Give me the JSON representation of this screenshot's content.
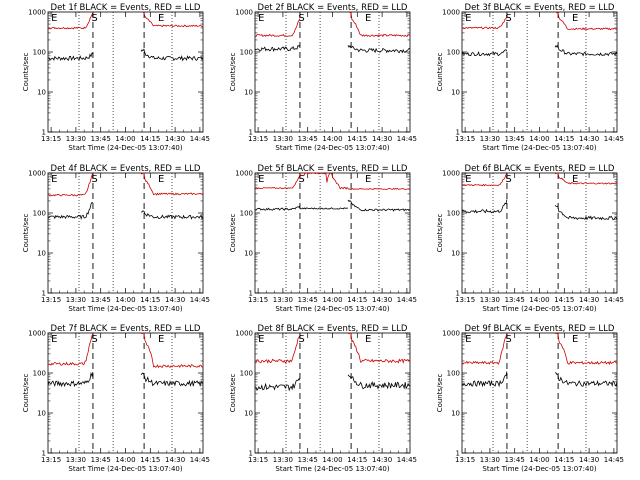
{
  "figure": {
    "xlabel": "Start Time (24-Dec-05 13:07:40)",
    "ylabel": "Counts/sec",
    "colors": {
      "events": "#000000",
      "lld": "#cc0000"
    }
  },
  "chart_data": [
    {
      "type": "line",
      "title": "Det 1f BLACK = Events, RED = LLD",
      "ylog": true,
      "ylim": [
        1,
        1000
      ],
      "xlim": [
        0,
        100
      ],
      "xticks": [
        "13:15",
        "13:30",
        "13:45",
        "14:00",
        "14:15",
        "14:30",
        "14:45"
      ],
      "yticks": [
        "1",
        "10",
        "100",
        "1000"
      ],
      "markers": [
        {
          "label": "E",
          "x": 2
        },
        {
          "label": "S",
          "x": 28
        },
        {
          "label": "E",
          "x": 71
        }
      ],
      "dotted_x": [
        20,
        42,
        80
      ],
      "dashed_x": [
        29,
        62
      ],
      "series": [
        {
          "name": "Events",
          "color": "#000000",
          "segments": [
            {
              "from": 0,
              "to": 29,
              "base": 70,
              "rise_end": 90,
              "noise": 0.12
            },
            {
              "from": 60,
              "to": 100,
              "base": 70,
              "spike": 110,
              "noise": 0.12
            }
          ]
        },
        {
          "name": "LLD",
          "color": "#cc0000",
          "segments": [
            {
              "from": 0,
              "to": 29,
              "base": 400,
              "rise_end": 1000,
              "noise": 0.05
            },
            {
              "from": 60,
              "to": 100,
              "base": 450,
              "spike": 1000,
              "noise": 0.05
            }
          ]
        }
      ]
    },
    {
      "type": "line",
      "title": "Det 2f BLACK = Events, RED = LLD",
      "ylog": true,
      "ylim": [
        1,
        1000
      ],
      "xlim": [
        0,
        100
      ],
      "xticks": [
        "13:15",
        "13:30",
        "13:45",
        "14:00",
        "14:15",
        "14:30",
        "14:45"
      ],
      "yticks": [
        "1",
        "10",
        "100",
        "1000"
      ],
      "markers": [
        {
          "label": "E",
          "x": 2
        },
        {
          "label": "S",
          "x": 28
        },
        {
          "label": "E",
          "x": 71
        }
      ],
      "dotted_x": [
        20,
        42,
        80
      ],
      "dashed_x": [
        29,
        62
      ],
      "series": [
        {
          "name": "Events",
          "color": "#000000",
          "segments": [
            {
              "from": 0,
              "to": 29,
              "base": 120,
              "rise_end": 140,
              "noise": 0.12
            },
            {
              "from": 60,
              "to": 100,
              "base": 110,
              "spike": 140,
              "noise": 0.12
            }
          ]
        },
        {
          "name": "LLD",
          "color": "#cc0000",
          "segments": [
            {
              "from": 0,
              "to": 29,
              "base": 260,
              "rise_end": 700,
              "noise": 0.06
            },
            {
              "from": 60,
              "to": 100,
              "base": 260,
              "spike": 1000,
              "noise": 0.06
            }
          ]
        }
      ]
    },
    {
      "type": "line",
      "title": "Det 3f BLACK = Events, RED = LLD",
      "ylog": true,
      "ylim": [
        1,
        1000
      ],
      "xlim": [
        0,
        100
      ],
      "xticks": [
        "13:15",
        "13:30",
        "13:45",
        "14:00",
        "14:15",
        "14:30",
        "14:45"
      ],
      "yticks": [
        "1",
        "10",
        "100",
        "1000"
      ],
      "markers": [
        {
          "label": "E",
          "x": 2
        },
        {
          "label": "S",
          "x": 28
        },
        {
          "label": "E",
          "x": 71
        }
      ],
      "dotted_x": [
        20,
        42,
        80
      ],
      "dashed_x": [
        29,
        62
      ],
      "series": [
        {
          "name": "Events",
          "color": "#000000",
          "segments": [
            {
              "from": 0,
              "to": 29,
              "base": 90,
              "rise_end": 110,
              "noise": 0.1
            },
            {
              "from": 60,
              "to": 100,
              "base": 90,
              "spike": 140,
              "noise": 0.1
            }
          ]
        },
        {
          "name": "LLD",
          "color": "#cc0000",
          "segments": [
            {
              "from": 0,
              "to": 29,
              "base": 400,
              "rise_end": 800,
              "noise": 0.05
            },
            {
              "from": 60,
              "to": 100,
              "base": 380,
              "spike": 1000,
              "noise": 0.05
            }
          ]
        }
      ]
    },
    {
      "type": "line",
      "title": "Det 4f BLACK = Events, RED = LLD",
      "ylog": true,
      "ylim": [
        1,
        1000
      ],
      "xlim": [
        0,
        100
      ],
      "xticks": [
        "13:15",
        "13:30",
        "13:45",
        "14:00",
        "14:15",
        "14:30",
        "14:45"
      ],
      "yticks": [
        "1",
        "10",
        "100",
        "1000"
      ],
      "markers": [
        {
          "label": "E",
          "x": 2
        },
        {
          "label": "S",
          "x": 28
        },
        {
          "label": "E",
          "x": 71
        }
      ],
      "dotted_x": [
        20,
        42,
        80
      ],
      "dashed_x": [
        29,
        62
      ],
      "series": [
        {
          "name": "Events",
          "color": "#000000",
          "segments": [
            {
              "from": 0,
              "to": 29,
              "base": 80,
              "rise_end": 200,
              "noise": 0.1
            },
            {
              "from": 60,
              "to": 100,
              "base": 80,
              "spike": 110,
              "noise": 0.1
            }
          ]
        },
        {
          "name": "LLD",
          "color": "#cc0000",
          "segments": [
            {
              "from": 0,
              "to": 29,
              "base": 280,
              "rise_end": 1000,
              "noise": 0.05
            },
            {
              "from": 60,
              "to": 100,
              "base": 300,
              "spike": 1000,
              "noise": 0.05
            }
          ]
        }
      ]
    },
    {
      "type": "line",
      "title": "Det 5f BLACK = Events, RED = LLD",
      "ylog": true,
      "ylim": [
        1,
        1000
      ],
      "xlim": [
        0,
        100
      ],
      "xticks": [
        "13:15",
        "13:30",
        "13:45",
        "14:00",
        "14:15",
        "14:30",
        "14:45"
      ],
      "yticks": [
        "1",
        "10",
        "100",
        "1000"
      ],
      "markers": [
        {
          "label": "E",
          "x": 2
        },
        {
          "label": "S",
          "x": 28
        },
        {
          "label": "E",
          "x": 71
        }
      ],
      "dotted_x": [
        20,
        42,
        80
      ],
      "dashed_x": [
        29,
        62
      ],
      "series": [
        {
          "name": "Events",
          "color": "#000000",
          "segments": [
            {
              "from": 0,
              "to": 29,
              "base": 125,
              "rise_end": 150,
              "noise": 0.06
            },
            {
              "from": 29,
              "to": 60,
              "base": 130,
              "noise": 0.04
            },
            {
              "from": 60,
              "to": 100,
              "base": 120,
              "spike": 200,
              "noise": 0.06
            }
          ]
        },
        {
          "name": "LLD",
          "color": "#cc0000",
          "segments": [
            {
              "from": 0,
              "to": 29,
              "base": 420,
              "rise_end": 900,
              "noise": 0.03
            },
            {
              "from": 29,
              "to": 60,
              "hump": true,
              "noise": 0.05
            },
            {
              "from": 60,
              "to": 100,
              "base": 400,
              "noise": 0.03
            }
          ]
        }
      ]
    },
    {
      "type": "line",
      "title": "Det 6f BLACK = Events, RED = LLD",
      "ylog": true,
      "ylim": [
        1,
        1000
      ],
      "xlim": [
        0,
        100
      ],
      "xticks": [
        "13:15",
        "13:30",
        "13:45",
        "14:00",
        "14:15",
        "14:30",
        "14:45"
      ],
      "yticks": [
        "1",
        "10",
        "100",
        "1000"
      ],
      "markers": [
        {
          "label": "E",
          "x": 2
        },
        {
          "label": "S",
          "x": 28
        },
        {
          "label": "E",
          "x": 71
        }
      ],
      "dotted_x": [
        20,
        42,
        80
      ],
      "dashed_x": [
        29,
        62
      ],
      "series": [
        {
          "name": "Events",
          "color": "#000000",
          "segments": [
            {
              "from": 0,
              "to": 29,
              "base": 110,
              "rise_end": 200,
              "noise": 0.1
            },
            {
              "from": 60,
              "to": 100,
              "base": 75,
              "spike": 150,
              "noise": 0.1
            }
          ]
        },
        {
          "name": "LLD",
          "color": "#cc0000",
          "segments": [
            {
              "from": 0,
              "to": 29,
              "base": 500,
              "rise_end": 1000,
              "noise": 0.04
            },
            {
              "from": 60,
              "to": 100,
              "base": 550,
              "spike": 1000,
              "noise": 0.04
            }
          ]
        }
      ]
    },
    {
      "type": "line",
      "title": "Det 7f BLACK = Events, RED = LLD",
      "ylog": true,
      "ylim": [
        1,
        1000
      ],
      "xlim": [
        0,
        100
      ],
      "xticks": [
        "13:15",
        "13:30",
        "13:45",
        "14:00",
        "14:15",
        "14:30",
        "14:45"
      ],
      "yticks": [
        "1",
        "10",
        "100",
        "1000"
      ],
      "markers": [
        {
          "label": "E",
          "x": 2
        },
        {
          "label": "S",
          "x": 28
        },
        {
          "label": "E",
          "x": 71
        }
      ],
      "dotted_x": [
        20,
        42,
        80
      ],
      "dashed_x": [
        29,
        62
      ],
      "series": [
        {
          "name": "Events",
          "color": "#000000",
          "segments": [
            {
              "from": 0,
              "to": 29,
              "base": 55,
              "rise_end": 110,
              "noise": 0.15
            },
            {
              "from": 60,
              "to": 100,
              "base": 55,
              "spike": 90,
              "noise": 0.15
            }
          ]
        },
        {
          "name": "LLD",
          "color": "#cc0000",
          "segments": [
            {
              "from": 0,
              "to": 29,
              "base": 170,
              "rise_end": 1000,
              "noise": 0.08
            },
            {
              "from": 60,
              "to": 100,
              "base": 150,
              "spike": 1000,
              "noise": 0.08
            }
          ]
        }
      ]
    },
    {
      "type": "line",
      "title": "Det 8f BLACK = Events, RED = LLD",
      "ylog": true,
      "ylim": [
        1,
        1000
      ],
      "xlim": [
        0,
        100
      ],
      "xticks": [
        "13:15",
        "13:30",
        "13:45",
        "14:00",
        "14:15",
        "14:30",
        "14:45"
      ],
      "yticks": [
        "1",
        "10",
        "100",
        "1000"
      ],
      "markers": [
        {
          "label": "E",
          "x": 2
        },
        {
          "label": "S",
          "x": 28
        },
        {
          "label": "E",
          "x": 71
        }
      ],
      "dotted_x": [
        20,
        42,
        80
      ],
      "dashed_x": [
        29,
        62
      ],
      "series": [
        {
          "name": "Events",
          "color": "#000000",
          "segments": [
            {
              "from": 0,
              "to": 29,
              "base": 45,
              "rise_end": 80,
              "noise": 0.18
            },
            {
              "from": 60,
              "to": 100,
              "base": 50,
              "spike": 90,
              "noise": 0.18
            }
          ]
        },
        {
          "name": "LLD",
          "color": "#cc0000",
          "segments": [
            {
              "from": 0,
              "to": 29,
              "base": 200,
              "rise_end": 1000,
              "noise": 0.1
            },
            {
              "from": 60,
              "to": 100,
              "base": 200,
              "spike": 1000,
              "noise": 0.1
            }
          ]
        }
      ]
    },
    {
      "type": "line",
      "title": "Det 9f BLACK = Events, RED = LLD",
      "ylog": true,
      "ylim": [
        1,
        1000
      ],
      "xlim": [
        0,
        100
      ],
      "xticks": [
        "13:15",
        "13:30",
        "13:45",
        "14:00",
        "14:15",
        "14:30",
        "14:45"
      ],
      "yticks": [
        "1",
        "10",
        "100",
        "1000"
      ],
      "markers": [
        {
          "label": "E",
          "x": 2
        },
        {
          "label": "S",
          "x": 28
        },
        {
          "label": "E",
          "x": 71
        }
      ],
      "dotted_x": [
        20,
        42,
        80
      ],
      "dashed_x": [
        29,
        62
      ],
      "series": [
        {
          "name": "Events",
          "color": "#000000",
          "segments": [
            {
              "from": 0,
              "to": 29,
              "base": 55,
              "rise_end": 100,
              "noise": 0.15
            },
            {
              "from": 60,
              "to": 100,
              "base": 55,
              "spike": 90,
              "noise": 0.15
            }
          ]
        },
        {
          "name": "LLD",
          "color": "#cc0000",
          "segments": [
            {
              "from": 0,
              "to": 29,
              "base": 180,
              "rise_end": 1000,
              "noise": 0.08
            },
            {
              "from": 60,
              "to": 100,
              "base": 180,
              "spike": 1000,
              "noise": 0.08
            }
          ]
        }
      ]
    }
  ]
}
